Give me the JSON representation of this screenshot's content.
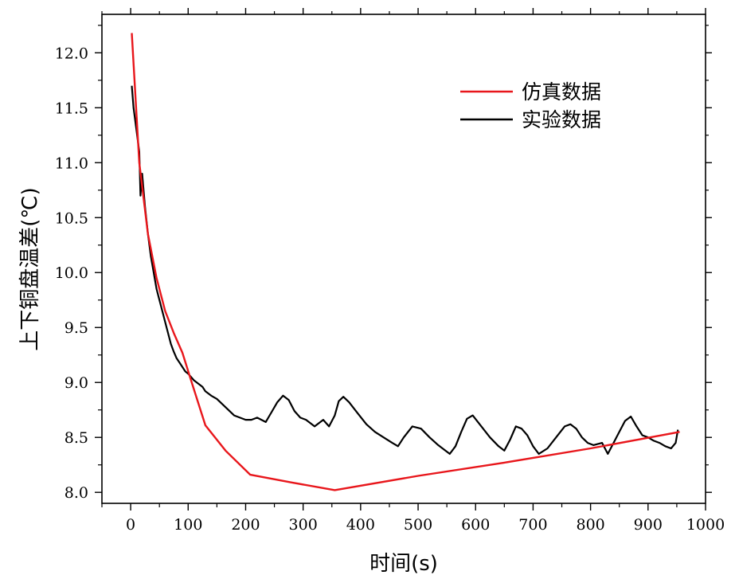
{
  "chart_data": {
    "type": "line",
    "title": "",
    "xlabel": "时间(s)",
    "ylabel": "上下铜盘温差(℃)",
    "xlim": [
      -50,
      1000
    ],
    "ylim": [
      7.9,
      12.35
    ],
    "x_ticks": [
      0,
      100,
      200,
      300,
      400,
      500,
      600,
      700,
      800,
      900,
      1000
    ],
    "x_tick_labels": [
      "0",
      "100",
      "200",
      "300",
      "400",
      "500",
      "600",
      "700",
      "800",
      "900",
      "1000"
    ],
    "y_ticks": [
      8.0,
      8.5,
      9.0,
      9.5,
      10.0,
      10.5,
      11.0,
      11.5,
      12.0
    ],
    "y_tick_labels": [
      "8.0",
      "8.5",
      "9.0",
      "9.5",
      "10.0",
      "10.5",
      "11.0",
      "11.5",
      "12.0"
    ],
    "legend_position": "top-right",
    "grid": false,
    "series": [
      {
        "name": "仿真数据",
        "color": "#e8161b",
        "x": [
          2,
          15,
          30,
          45,
          60,
          75,
          90,
          105,
          130,
          165,
          208,
          280,
          355,
          500,
          650,
          800,
          955
        ],
        "y": [
          12.18,
          11.0,
          10.35,
          9.95,
          9.65,
          9.45,
          9.27,
          9.02,
          8.61,
          8.38,
          8.16,
          8.09,
          8.02,
          8.15,
          8.27,
          8.4,
          8.55
        ]
      },
      {
        "name": "实验数据",
        "color": "#000000",
        "x": [
          2,
          5,
          10,
          15,
          17,
          20,
          25,
          30,
          35,
          40,
          45,
          50,
          55,
          60,
          65,
          70,
          75,
          80,
          85,
          90,
          95,
          100,
          110,
          120,
          125,
          130,
          140,
          150,
          160,
          170,
          180,
          190,
          200,
          210,
          220,
          235,
          245,
          255,
          265,
          275,
          285,
          295,
          305,
          320,
          335,
          345,
          355,
          362,
          370,
          380,
          395,
          410,
          425,
          440,
          455,
          465,
          475,
          490,
          505,
          520,
          535,
          545,
          555,
          565,
          575,
          585,
          595,
          610,
          625,
          640,
          650,
          660,
          670,
          680,
          690,
          700,
          710,
          725,
          740,
          755,
          765,
          775,
          785,
          795,
          805,
          820,
          830,
          840,
          850,
          860,
          870,
          880,
          890,
          900,
          910,
          920,
          930,
          940,
          948,
          952
        ],
        "y": [
          11.7,
          11.5,
          11.3,
          11.1,
          10.7,
          10.9,
          10.6,
          10.35,
          10.15,
          10.0,
          9.85,
          9.75,
          9.65,
          9.55,
          9.45,
          9.35,
          9.28,
          9.22,
          9.18,
          9.14,
          9.1,
          9.08,
          9.02,
          8.98,
          8.96,
          8.92,
          8.88,
          8.85,
          8.8,
          8.75,
          8.7,
          8.68,
          8.66,
          8.66,
          8.68,
          8.64,
          8.73,
          8.82,
          8.88,
          8.84,
          8.74,
          8.68,
          8.66,
          8.6,
          8.66,
          8.6,
          8.7,
          8.83,
          8.87,
          8.82,
          8.72,
          8.62,
          8.55,
          8.5,
          8.45,
          8.42,
          8.5,
          8.6,
          8.58,
          8.5,
          8.43,
          8.39,
          8.35,
          8.42,
          8.55,
          8.67,
          8.7,
          8.6,
          8.5,
          8.42,
          8.38,
          8.48,
          8.6,
          8.58,
          8.52,
          8.42,
          8.35,
          8.4,
          8.5,
          8.6,
          8.62,
          8.58,
          8.5,
          8.45,
          8.43,
          8.45,
          8.35,
          8.45,
          8.55,
          8.65,
          8.69,
          8.6,
          8.52,
          8.5,
          8.47,
          8.45,
          8.42,
          8.4,
          8.45,
          8.57
        ]
      }
    ]
  }
}
